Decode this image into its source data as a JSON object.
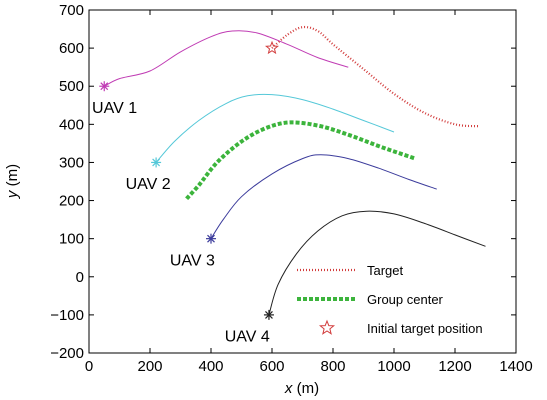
{
  "chart_data": {
    "type": "line",
    "xlabel": "x (m)",
    "xlabel_italic_part": "x",
    "xlabel_unit": "(m)",
    "ylabel_italic_part": "y",
    "ylabel_unit": "(m)",
    "xlim": [
      0,
      1400
    ],
    "ylim": [
      -200,
      700
    ],
    "xticks": [
      0,
      200,
      400,
      600,
      800,
      1000,
      1200,
      1400
    ],
    "yticks": [
      -200,
      -100,
      0,
      100,
      200,
      300,
      400,
      500,
      600,
      700
    ],
    "xtick_labels": [
      "0",
      "200",
      "400",
      "600",
      "800",
      "1000",
      "1200",
      "1400"
    ],
    "ytick_labels": [
      "−200",
      "−100",
      "0",
      "100",
      "200",
      "300",
      "400",
      "500",
      "600",
      "700"
    ],
    "grid": false,
    "legend_position": "bottom-right",
    "series": [
      {
        "name": "UAV 1",
        "color": "#c03cb4",
        "style": "solid",
        "start_marker": "asterisk",
        "points": [
          [
            50,
            500
          ],
          [
            100,
            520
          ],
          [
            200,
            540
          ],
          [
            300,
            590
          ],
          [
            400,
            630
          ],
          [
            470,
            645
          ],
          [
            550,
            640
          ],
          [
            650,
            610
          ],
          [
            750,
            575
          ],
          [
            850,
            550
          ]
        ]
      },
      {
        "name": "UAV 2",
        "color": "#55c8d8",
        "style": "solid",
        "start_marker": "asterisk",
        "points": [
          [
            220,
            300
          ],
          [
            280,
            355
          ],
          [
            360,
            410
          ],
          [
            450,
            455
          ],
          [
            520,
            475
          ],
          [
            600,
            478
          ],
          [
            700,
            465
          ],
          [
            800,
            440
          ],
          [
            900,
            410
          ],
          [
            1000,
            380
          ]
        ]
      },
      {
        "name": "UAV 3",
        "color": "#3c3c9c",
        "style": "solid",
        "start_marker": "asterisk",
        "points": [
          [
            400,
            100
          ],
          [
            440,
            150
          ],
          [
            500,
            210
          ],
          [
            600,
            270
          ],
          [
            700,
            310
          ],
          [
            760,
            320
          ],
          [
            850,
            310
          ],
          [
            950,
            285
          ],
          [
            1050,
            255
          ],
          [
            1140,
            230
          ]
        ]
      },
      {
        "name": "UAV 4",
        "color": "#222222",
        "style": "solid",
        "start_marker": "asterisk",
        "points": [
          [
            590,
            -100
          ],
          [
            620,
            -20
          ],
          [
            680,
            60
          ],
          [
            750,
            120
          ],
          [
            830,
            160
          ],
          [
            910,
            172
          ],
          [
            1000,
            165
          ],
          [
            1100,
            140
          ],
          [
            1200,
            110
          ],
          [
            1300,
            80
          ]
        ]
      },
      {
        "name": "Target",
        "color": "#d23c3c",
        "style": "dotted",
        "points": [
          [
            600,
            600
          ],
          [
            650,
            635
          ],
          [
            700,
            655
          ],
          [
            750,
            645
          ],
          [
            800,
            610
          ],
          [
            900,
            545
          ],
          [
            1000,
            480
          ],
          [
            1100,
            430
          ],
          [
            1200,
            400
          ],
          [
            1280,
            395
          ]
        ]
      },
      {
        "name": "Group center",
        "color": "#3cb43c",
        "style": "dashed-thick",
        "points": [
          [
            320,
            205
          ],
          [
            360,
            240
          ],
          [
            420,
            300
          ],
          [
            500,
            355
          ],
          [
            580,
            390
          ],
          [
            660,
            405
          ],
          [
            760,
            395
          ],
          [
            860,
            370
          ],
          [
            960,
            340
          ],
          [
            1070,
            310
          ]
        ]
      }
    ],
    "annotations": [
      {
        "text": "UAV 1",
        "x": 10,
        "y": 430
      },
      {
        "text": "UAV 2",
        "x": 120,
        "y": 230
      },
      {
        "text": "UAV 3",
        "x": 265,
        "y": 30
      },
      {
        "text": "UAV 4",
        "x": 445,
        "y": -170
      }
    ],
    "initial_target": {
      "x": 600,
      "y": 600,
      "color": "#d23c3c"
    },
    "legend": [
      {
        "label": "Target",
        "key": "Target"
      },
      {
        "label": "Group center",
        "key": "Group center"
      },
      {
        "label": "Initial target position",
        "key": "initial_target"
      }
    ]
  }
}
